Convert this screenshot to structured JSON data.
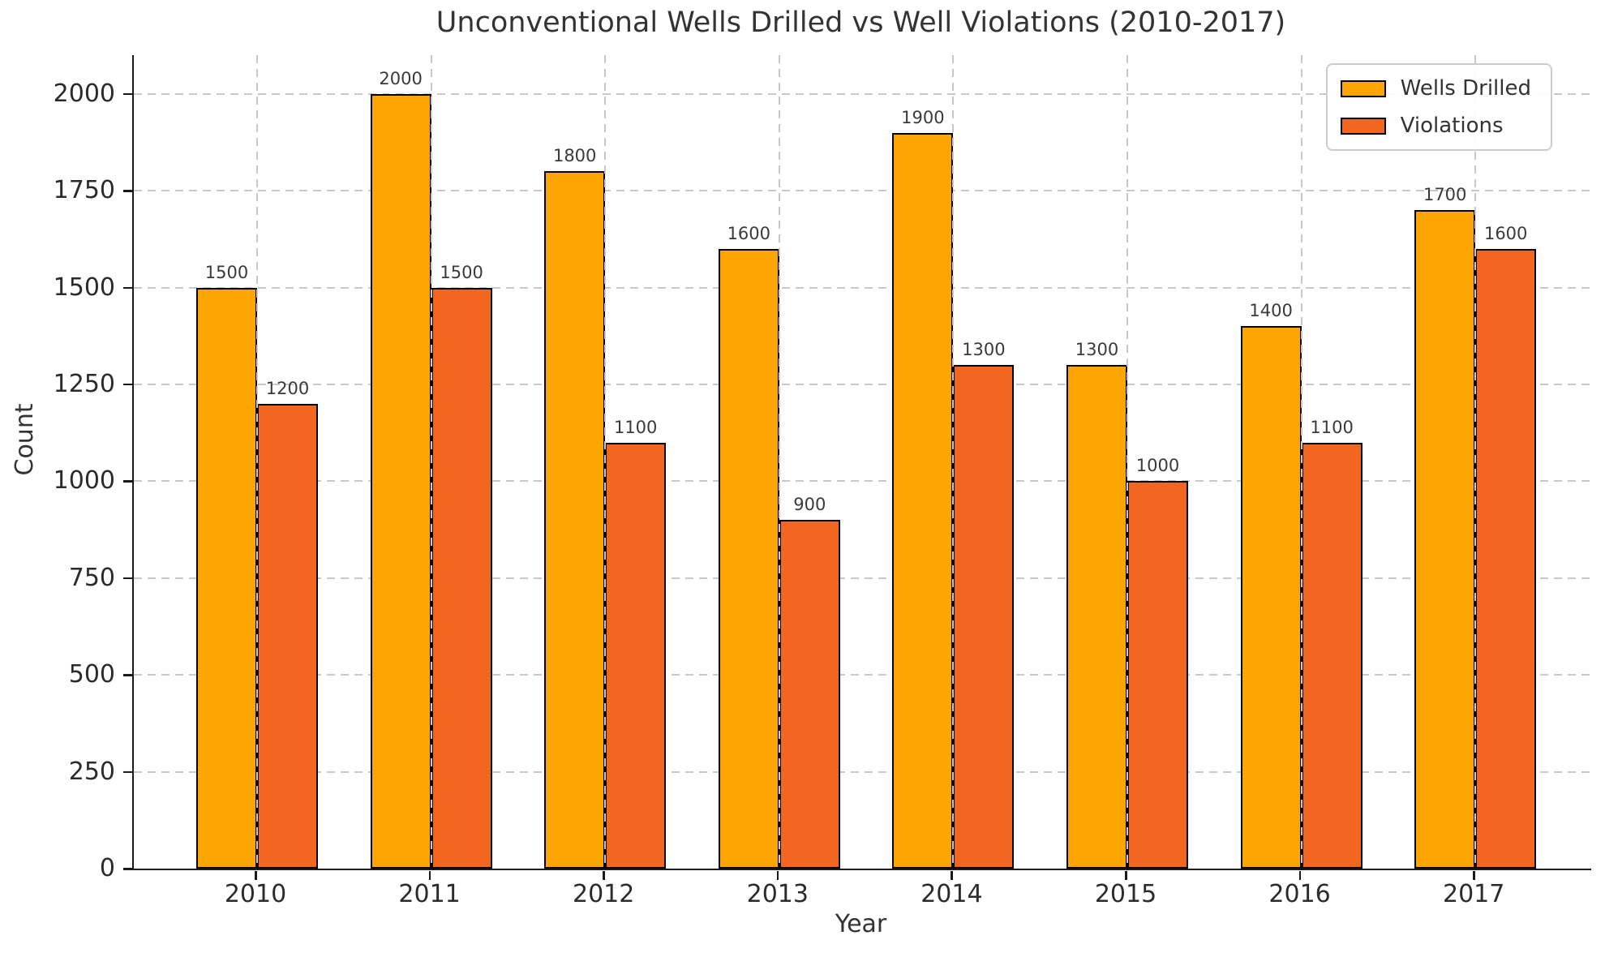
{
  "chart_data": {
    "type": "bar",
    "title": "Unconventional Wells Drilled vs Well Violations (2010-2017)",
    "xlabel": "Year",
    "ylabel": "Count",
    "categories": [
      "2010",
      "2011",
      "2012",
      "2013",
      "2014",
      "2015",
      "2016",
      "2017"
    ],
    "series": [
      {
        "name": "Wells Drilled",
        "color": "#FCA503",
        "values": [
          1500,
          2000,
          1800,
          1600,
          1900,
          1300,
          1400,
          1700
        ]
      },
      {
        "name": "Violations",
        "color": "#F2661F",
        "values": [
          1200,
          1500,
          1100,
          900,
          1300,
          1000,
          1100,
          1600
        ]
      }
    ],
    "ylim": [
      0,
      2100
    ],
    "yticks": [
      0,
      250,
      500,
      750,
      1000,
      1250,
      1500,
      1750,
      2000
    ],
    "grid": true,
    "grid_style": "dashed",
    "legend_position": "upper right",
    "bar_edge_color": "#000000",
    "data_labels": true
  }
}
